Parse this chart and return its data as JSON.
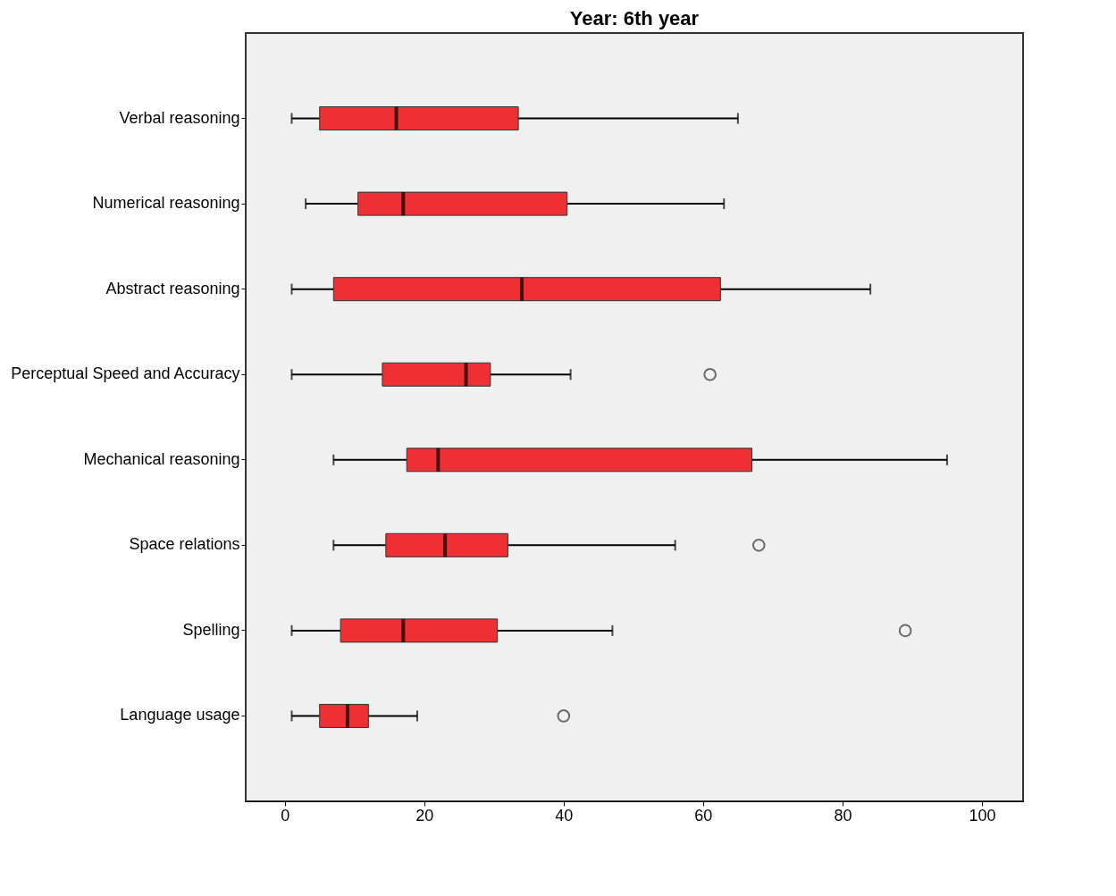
{
  "chart_data": {
    "type": "box",
    "title": "Year: 6th year",
    "orientation": "horizontal",
    "color": "#ee3035",
    "categories": [
      "Verbal reasoning",
      "Numerical reasoning",
      "Abstract reasoning",
      "Perceptual Speed and Accuracy",
      "Mechanical reasoning",
      "Space relations",
      "Spelling",
      "Language usage"
    ],
    "boxes": [
      {
        "low": 1,
        "q1": 5,
        "median": 16,
        "q3": 33.5,
        "high": 65
      },
      {
        "low": 3,
        "q1": 10.5,
        "median": 17,
        "q3": 40.5,
        "high": 63
      },
      {
        "low": 1,
        "q1": 7,
        "median": 34,
        "q3": 62.5,
        "high": 84
      },
      {
        "low": 1,
        "q1": 14,
        "median": 26,
        "q3": 29.5,
        "high": 41,
        "outliers": [
          61
        ]
      },
      {
        "low": 7,
        "q1": 17.5,
        "median": 22,
        "q3": 67,
        "high": 95
      },
      {
        "low": 7,
        "q1": 14.5,
        "median": 23,
        "q3": 32,
        "high": 56,
        "outliers": [
          68
        ]
      },
      {
        "low": 1,
        "q1": 8,
        "median": 17,
        "q3": 30.5,
        "high": 47,
        "outliers": [
          89
        ]
      },
      {
        "low": 1,
        "q1": 5,
        "median": 9,
        "q3": 12,
        "high": 19,
        "outliers": [
          40
        ]
      }
    ],
    "xlim": [
      -5.6,
      105.9
    ],
    "xticks": [
      0,
      20,
      40,
      60,
      80,
      100
    ],
    "grid": false
  }
}
